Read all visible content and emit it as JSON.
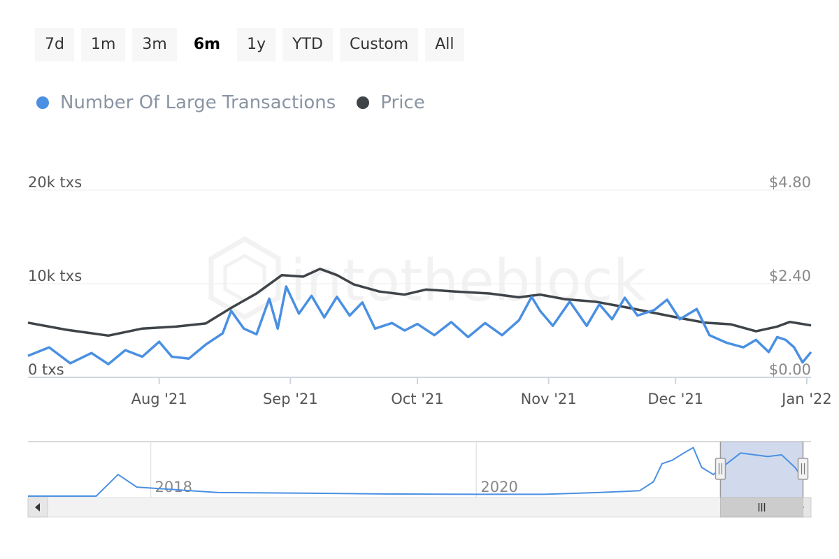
{
  "range_buttons": [
    {
      "label": "7d",
      "active": false
    },
    {
      "label": "1m",
      "active": false
    },
    {
      "label": "3m",
      "active": false
    },
    {
      "label": "6m",
      "active": true
    },
    {
      "label": "1y",
      "active": false
    },
    {
      "label": "YTD",
      "active": false
    },
    {
      "label": "Custom",
      "active": false
    },
    {
      "label": "All",
      "active": false
    }
  ],
  "legend": [
    {
      "label": "Number Of Large Transactions",
      "color": "#4a90e2"
    },
    {
      "label": "Price",
      "color": "#3f4449"
    }
  ],
  "watermark": "intotheblock",
  "chart_data": {
    "type": "line",
    "x_start": "2021-07-01",
    "x_end": "2022-01-02",
    "x_ticks": [
      {
        "label": "Aug '21",
        "date": "2021-08-01"
      },
      {
        "label": "Sep '21",
        "date": "2021-09-01"
      },
      {
        "label": "Oct '21",
        "date": "2021-10-01"
      },
      {
        "label": "Nov '21",
        "date": "2021-11-01"
      },
      {
        "label": "Dec '21",
        "date": "2021-12-01"
      },
      {
        "label": "Jan '22",
        "date": "2022-01-01"
      }
    ],
    "y_left": {
      "ticks": [
        "0 txs",
        "10k txs",
        "20k txs"
      ],
      "values": [
        0,
        10000,
        20000
      ],
      "range": [
        0,
        20000
      ]
    },
    "y_right": {
      "ticks": [
        "$0.00",
        "$2.40",
        "$4.80"
      ],
      "values": [
        0,
        2.4,
        4.8
      ],
      "range": [
        0,
        4.8
      ]
    },
    "series": [
      {
        "name": "Number Of Large Transactions",
        "axis": "left",
        "color": "#4a90e2",
        "points": [
          [
            "2021-07-01",
            2300
          ],
          [
            "2021-07-06",
            3200
          ],
          [
            "2021-07-11",
            1500
          ],
          [
            "2021-07-16",
            2600
          ],
          [
            "2021-07-20",
            1400
          ],
          [
            "2021-07-24",
            2900
          ],
          [
            "2021-07-28",
            2200
          ],
          [
            "2021-08-01",
            3800
          ],
          [
            "2021-08-04",
            2200
          ],
          [
            "2021-08-08",
            2000
          ],
          [
            "2021-08-12",
            3500
          ],
          [
            "2021-08-16",
            4700
          ],
          [
            "2021-08-18",
            7100
          ],
          [
            "2021-08-21",
            5200
          ],
          [
            "2021-08-24",
            4600
          ],
          [
            "2021-08-27",
            8400
          ],
          [
            "2021-08-29",
            5200
          ],
          [
            "2021-08-31",
            9700
          ],
          [
            "2021-09-03",
            6800
          ],
          [
            "2021-09-06",
            8700
          ],
          [
            "2021-09-09",
            6400
          ],
          [
            "2021-09-12",
            8600
          ],
          [
            "2021-09-15",
            6600
          ],
          [
            "2021-09-18",
            8000
          ],
          [
            "2021-09-21",
            5200
          ],
          [
            "2021-09-25",
            5800
          ],
          [
            "2021-09-28",
            5000
          ],
          [
            "2021-10-01",
            5700
          ],
          [
            "2021-10-05",
            4500
          ],
          [
            "2021-10-09",
            5900
          ],
          [
            "2021-10-13",
            4300
          ],
          [
            "2021-10-17",
            5800
          ],
          [
            "2021-10-21",
            4500
          ],
          [
            "2021-10-25",
            6100
          ],
          [
            "2021-10-28",
            8600
          ],
          [
            "2021-10-30",
            7100
          ],
          [
            "2021-11-02",
            5500
          ],
          [
            "2021-11-06",
            8100
          ],
          [
            "2021-11-10",
            5500
          ],
          [
            "2021-11-13",
            7800
          ],
          [
            "2021-11-16",
            6200
          ],
          [
            "2021-11-19",
            8500
          ],
          [
            "2021-11-22",
            6600
          ],
          [
            "2021-11-26",
            7200
          ],
          [
            "2021-11-29",
            8300
          ],
          [
            "2021-12-02",
            6200
          ],
          [
            "2021-12-06",
            7300
          ],
          [
            "2021-12-09",
            4500
          ],
          [
            "2021-12-13",
            3700
          ],
          [
            "2021-12-17",
            3200
          ],
          [
            "2021-12-20",
            4000
          ],
          [
            "2021-12-23",
            2700
          ],
          [
            "2021-12-25",
            4300
          ],
          [
            "2021-12-27",
            4000
          ],
          [
            "2021-12-29",
            3200
          ],
          [
            "2021-12-31",
            1600
          ],
          [
            "2022-01-02",
            2700
          ]
        ]
      },
      {
        "name": "Price",
        "axis": "right",
        "color": "#3f4449",
        "points": [
          [
            "2021-07-01",
            1.4
          ],
          [
            "2021-07-10",
            1.22
          ],
          [
            "2021-07-20",
            1.07
          ],
          [
            "2021-07-28",
            1.25
          ],
          [
            "2021-08-05",
            1.3
          ],
          [
            "2021-08-12",
            1.38
          ],
          [
            "2021-08-18",
            1.78
          ],
          [
            "2021-08-24",
            2.15
          ],
          [
            "2021-08-30",
            2.62
          ],
          [
            "2021-09-04",
            2.58
          ],
          [
            "2021-09-08",
            2.78
          ],
          [
            "2021-09-12",
            2.62
          ],
          [
            "2021-09-16",
            2.38
          ],
          [
            "2021-09-22",
            2.2
          ],
          [
            "2021-09-28",
            2.12
          ],
          [
            "2021-10-03",
            2.25
          ],
          [
            "2021-10-10",
            2.2
          ],
          [
            "2021-10-18",
            2.15
          ],
          [
            "2021-10-25",
            2.05
          ],
          [
            "2021-10-30",
            2.12
          ],
          [
            "2021-11-05",
            2.0
          ],
          [
            "2021-11-12",
            1.94
          ],
          [
            "2021-11-20",
            1.78
          ],
          [
            "2021-11-26",
            1.65
          ],
          [
            "2021-12-02",
            1.52
          ],
          [
            "2021-12-08",
            1.4
          ],
          [
            "2021-12-14",
            1.36
          ],
          [
            "2021-12-20",
            1.18
          ],
          [
            "2021-12-25",
            1.3
          ],
          [
            "2021-12-28",
            1.42
          ],
          [
            "2022-01-02",
            1.33
          ]
        ]
      }
    ]
  },
  "navigator": {
    "labels": [
      "2018",
      "2020"
    ],
    "selection": {
      "start": "2021-07-01",
      "end": "2022-01-02"
    },
    "x_start": "2017-04-01",
    "x_end": "2022-01-20",
    "series_points": [
      [
        "2017-04-01",
        0
      ],
      [
        "2017-09-01",
        0
      ],
      [
        "2017-10-20",
        6
      ],
      [
        "2017-12-01",
        2.5
      ],
      [
        "2018-02-01",
        2
      ],
      [
        "2018-06-01",
        1
      ],
      [
        "2019-01-01",
        0.8
      ],
      [
        "2019-06-01",
        0.6
      ],
      [
        "2020-01-01",
        0.5
      ],
      [
        "2020-06-01",
        0.5
      ],
      [
        "2020-10-01",
        1
      ],
      [
        "2021-01-01",
        1.5
      ],
      [
        "2021-02-01",
        4
      ],
      [
        "2021-02-20",
        9
      ],
      [
        "2021-03-15",
        10
      ],
      [
        "2021-04-10",
        12
      ],
      [
        "2021-05-01",
        13.5
      ],
      [
        "2021-05-20",
        8
      ],
      [
        "2021-06-15",
        6
      ],
      [
        "2021-07-15",
        9
      ],
      [
        "2021-08-15",
        12
      ],
      [
        "2021-09-15",
        11.5
      ],
      [
        "2021-10-15",
        11
      ],
      [
        "2021-11-15",
        11.5
      ],
      [
        "2021-12-15",
        8
      ],
      [
        "2022-01-02",
        5
      ]
    ]
  }
}
